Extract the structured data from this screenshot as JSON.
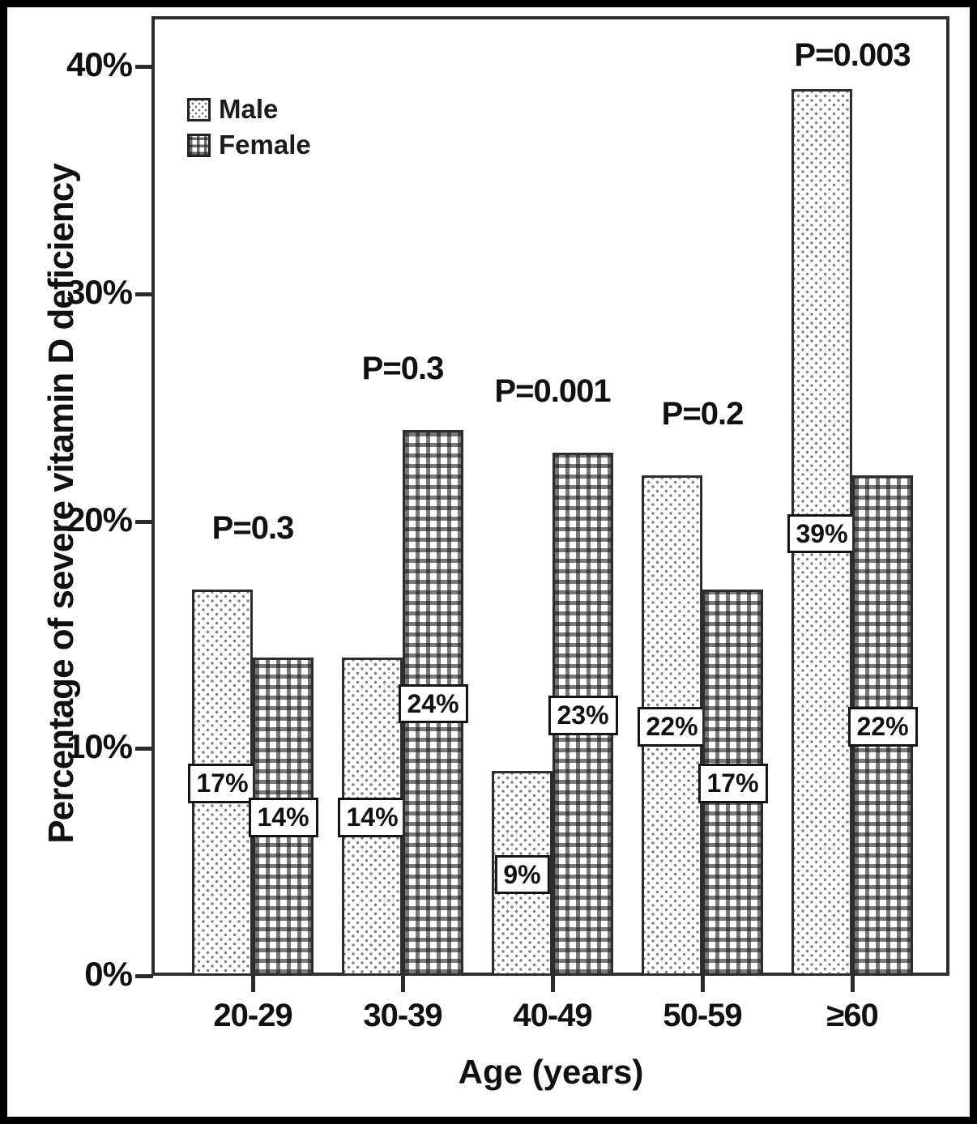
{
  "chart_data": {
    "type": "bar",
    "title": "",
    "categories": [
      "20-29",
      "30-39",
      "40-49",
      "50-59",
      "≥60"
    ],
    "series": [
      {
        "name": "Male",
        "pattern": "dots",
        "values": [
          17,
          14,
          9,
          22,
          39
        ],
        "labels": [
          "17%",
          "14%",
          "9%",
          "22%",
          "39%"
        ]
      },
      {
        "name": "Female",
        "pattern": "grid",
        "values": [
          14,
          24,
          23,
          17,
          22
        ],
        "labels": [
          "14%",
          "24%",
          "23%",
          "17%",
          "22%"
        ]
      }
    ],
    "p_values": [
      "P=0.3",
      "P=0.3",
      "P=0.001",
      "P=0.2",
      "P=0.003"
    ],
    "xlabel": "Age (years)",
    "ylabel": "Percentage of severe vitamin D deficiency",
    "yticks": [
      {
        "label": "0%",
        "value": 0
      },
      {
        "label": "10%",
        "value": 10
      },
      {
        "label": "20%",
        "value": 20
      },
      {
        "label": "30%",
        "value": 30
      },
      {
        "label": "40%",
        "value": 40
      }
    ],
    "ylim": [
      0,
      40
    ],
    "grid": false,
    "legend_position": "top-left",
    "colors": {
      "ink": "#111111",
      "frame": "#2f2f2f",
      "background": "#ffffff",
      "male_dot": "#828282",
      "female_line": "#161616"
    }
  }
}
